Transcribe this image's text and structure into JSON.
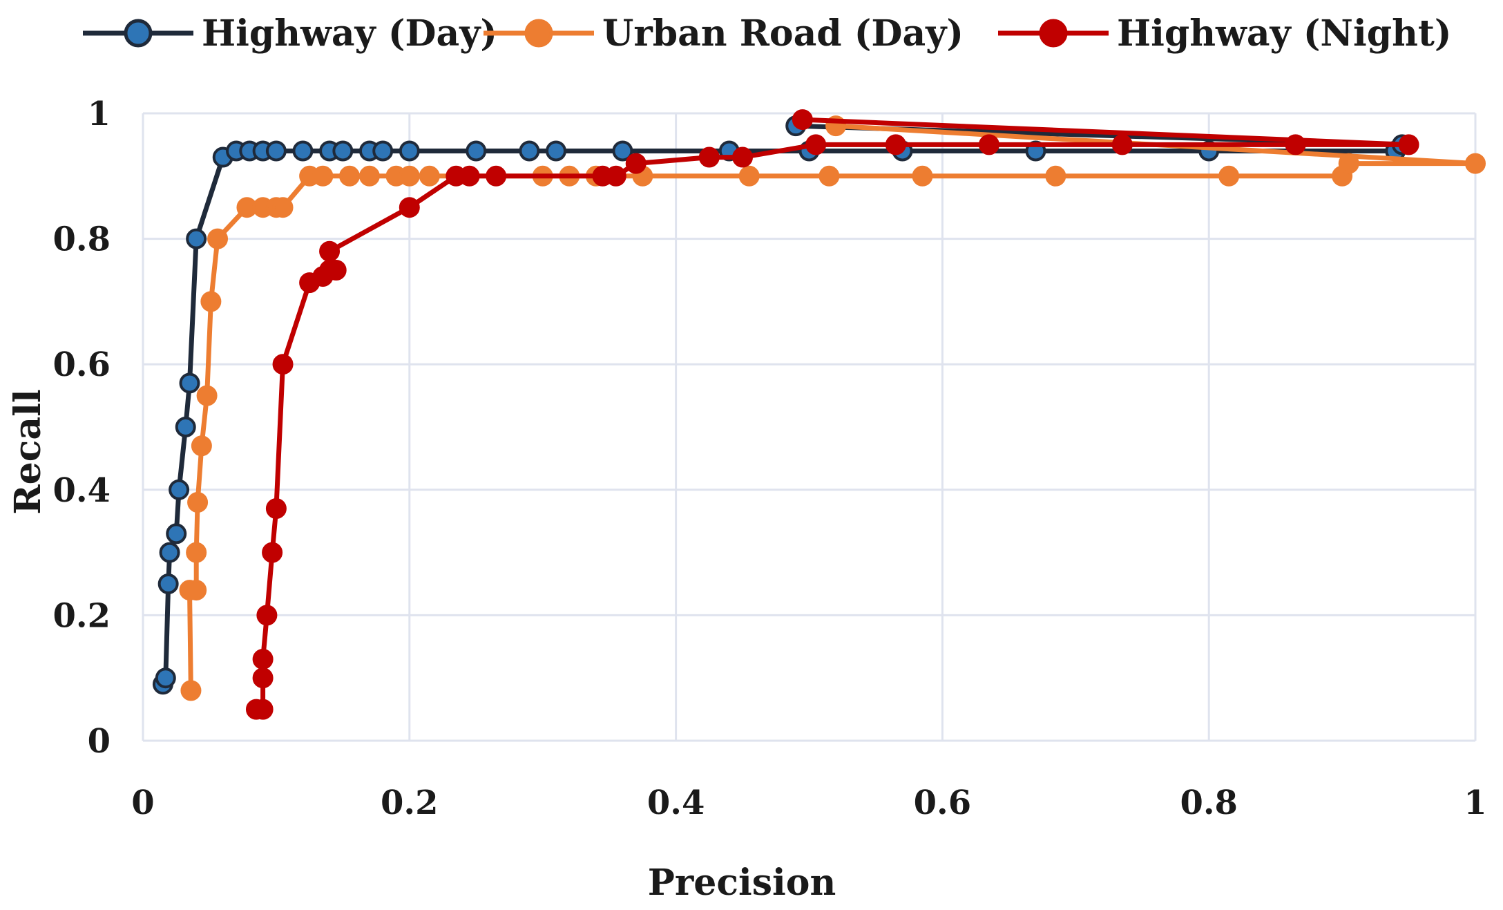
{
  "chart_data": {
    "type": "line",
    "title": "",
    "xlabel": "Precision",
    "ylabel": "Recall",
    "xlim": [
      0,
      1
    ],
    "ylim": [
      0,
      1
    ],
    "x_ticks": [
      "0",
      "0.2",
      "0.4",
      "0.6",
      "0.8",
      "1"
    ],
    "y_ticks": [
      "0",
      "0.2",
      "0.4",
      "0.6",
      "0.8",
      "1"
    ],
    "grid": true,
    "legend_position": "top",
    "series": [
      {
        "name": "Highway (Day)",
        "color": "#1f2a3a",
        "marker_color": "#2e75b6",
        "points": [
          [
            0.015,
            0.09
          ],
          [
            0.017,
            0.1
          ],
          [
            0.019,
            0.25
          ],
          [
            0.02,
            0.3
          ],
          [
            0.025,
            0.33
          ],
          [
            0.027,
            0.4
          ],
          [
            0.032,
            0.5
          ],
          [
            0.035,
            0.57
          ],
          [
            0.04,
            0.8
          ],
          [
            0.06,
            0.93
          ],
          [
            0.07,
            0.94
          ],
          [
            0.08,
            0.94
          ],
          [
            0.09,
            0.94
          ],
          [
            0.1,
            0.94
          ],
          [
            0.12,
            0.94
          ],
          [
            0.14,
            0.94
          ],
          [
            0.15,
            0.94
          ],
          [
            0.17,
            0.94
          ],
          [
            0.18,
            0.94
          ],
          [
            0.2,
            0.94
          ],
          [
            0.25,
            0.94
          ],
          [
            0.29,
            0.94
          ],
          [
            0.31,
            0.94
          ],
          [
            0.36,
            0.94
          ],
          [
            0.44,
            0.94
          ],
          [
            0.5,
            0.94
          ],
          [
            0.57,
            0.94
          ],
          [
            0.67,
            0.94
          ],
          [
            0.8,
            0.94
          ],
          [
            0.94,
            0.94
          ],
          [
            0.945,
            0.95
          ],
          [
            0.49,
            0.98
          ]
        ]
      },
      {
        "name": "Urban Road (Day)",
        "color": "#ed7d31",
        "marker_color": "#ed7d31",
        "points": [
          [
            0.036,
            0.08
          ],
          [
            0.035,
            0.24
          ],
          [
            0.04,
            0.24
          ],
          [
            0.04,
            0.3
          ],
          [
            0.041,
            0.38
          ],
          [
            0.044,
            0.47
          ],
          [
            0.048,
            0.55
          ],
          [
            0.051,
            0.7
          ],
          [
            0.056,
            0.8
          ],
          [
            0.078,
            0.85
          ],
          [
            0.09,
            0.85
          ],
          [
            0.1,
            0.85
          ],
          [
            0.105,
            0.85
          ],
          [
            0.125,
            0.9
          ],
          [
            0.135,
            0.9
          ],
          [
            0.155,
            0.9
          ],
          [
            0.17,
            0.9
          ],
          [
            0.19,
            0.9
          ],
          [
            0.2,
            0.9
          ],
          [
            0.215,
            0.9
          ],
          [
            0.3,
            0.9
          ],
          [
            0.32,
            0.9
          ],
          [
            0.34,
            0.9
          ],
          [
            0.375,
            0.9
          ],
          [
            0.455,
            0.9
          ],
          [
            0.515,
            0.9
          ],
          [
            0.585,
            0.9
          ],
          [
            0.685,
            0.9
          ],
          [
            0.815,
            0.9
          ],
          [
            0.9,
            0.9
          ],
          [
            0.905,
            0.92
          ],
          [
            1.0,
            0.92
          ],
          [
            0.52,
            0.98
          ]
        ]
      },
      {
        "name": "Highway (Night)",
        "color": "#c00000",
        "marker_color": "#c00000",
        "points": [
          [
            0.085,
            0.05
          ],
          [
            0.09,
            0.05
          ],
          [
            0.09,
            0.1
          ],
          [
            0.09,
            0.13
          ],
          [
            0.093,
            0.2
          ],
          [
            0.097,
            0.3
          ],
          [
            0.1,
            0.37
          ],
          [
            0.105,
            0.6
          ],
          [
            0.125,
            0.73
          ],
          [
            0.135,
            0.74
          ],
          [
            0.14,
            0.75
          ],
          [
            0.145,
            0.75
          ],
          [
            0.14,
            0.78
          ],
          [
            0.2,
            0.85
          ],
          [
            0.235,
            0.9
          ],
          [
            0.245,
            0.9
          ],
          [
            0.265,
            0.9
          ],
          [
            0.345,
            0.9
          ],
          [
            0.355,
            0.9
          ],
          [
            0.37,
            0.92
          ],
          [
            0.425,
            0.93
          ],
          [
            0.45,
            0.93
          ],
          [
            0.505,
            0.95
          ],
          [
            0.565,
            0.95
          ],
          [
            0.635,
            0.95
          ],
          [
            0.735,
            0.95
          ],
          [
            0.865,
            0.95
          ],
          [
            0.95,
            0.95
          ],
          [
            0.495,
            0.99
          ]
        ]
      }
    ]
  }
}
